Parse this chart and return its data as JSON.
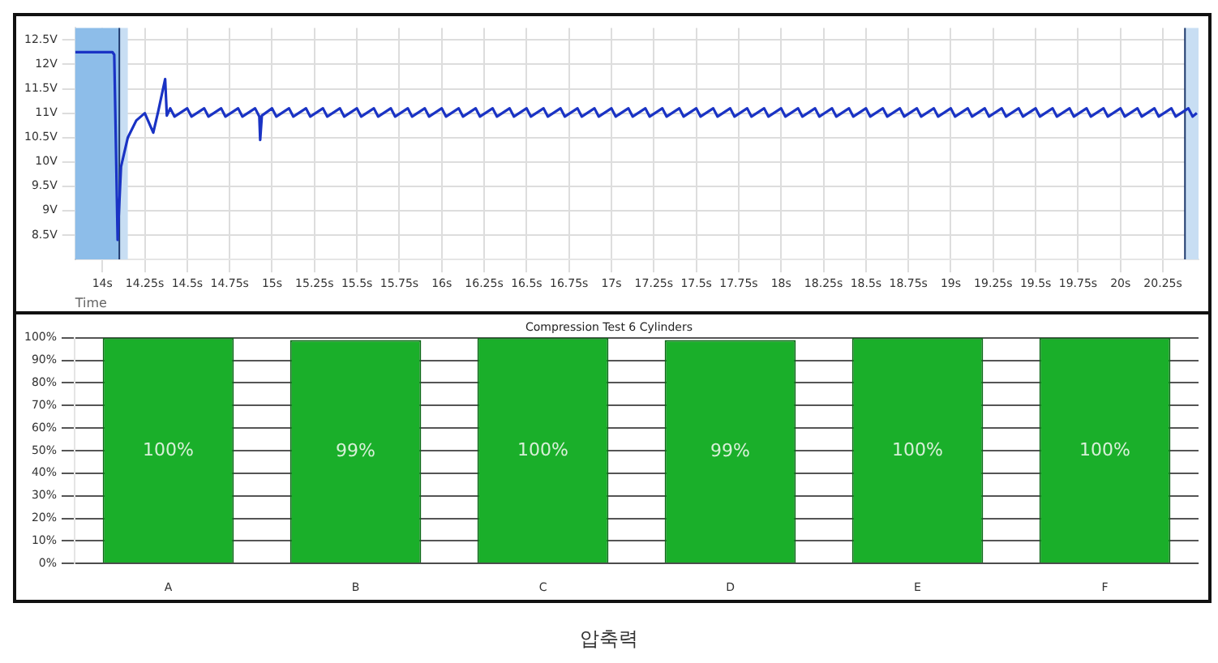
{
  "chart_data": [
    {
      "type": "line",
      "xlabel": "Time",
      "xlim": [
        13.84,
        20.46
      ],
      "xticks": [
        {
          "value": 14,
          "label": "14s"
        },
        {
          "value": 14.25,
          "label": "14.25s"
        },
        {
          "value": 14.5,
          "label": "14.5s"
        },
        {
          "value": 14.75,
          "label": "14.75s"
        },
        {
          "value": 15,
          "label": "15s"
        },
        {
          "value": 15.25,
          "label": "15.25s"
        },
        {
          "value": 15.5,
          "label": "15.5s"
        },
        {
          "value": 15.75,
          "label": "15.75s"
        },
        {
          "value": 16,
          "label": "16s"
        },
        {
          "value": 16.25,
          "label": "16.25s"
        },
        {
          "value": 16.5,
          "label": "16.5s"
        },
        {
          "value": 16.75,
          "label": "16.75s"
        },
        {
          "value": 17,
          "label": "17s"
        },
        {
          "value": 17.25,
          "label": "17.25s"
        },
        {
          "value": 17.5,
          "label": "17.5s"
        },
        {
          "value": 17.75,
          "label": "17.75s"
        },
        {
          "value": 18,
          "label": "18s"
        },
        {
          "value": 18.25,
          "label": "18.25s"
        },
        {
          "value": 18.5,
          "label": "18.5s"
        },
        {
          "value": 18.75,
          "label": "18.75s"
        },
        {
          "value": 19,
          "label": "19s"
        },
        {
          "value": 19.25,
          "label": "19.25s"
        },
        {
          "value": 19.5,
          "label": "19.5s"
        },
        {
          "value": 19.75,
          "label": "19.75s"
        },
        {
          "value": 20,
          "label": "20s"
        },
        {
          "value": 20.25,
          "label": "20.25s"
        }
      ],
      "ylim": [
        8,
        12.75
      ],
      "yticks": [
        {
          "value": 8.5,
          "label": "8.5V"
        },
        {
          "value": 9,
          "label": "9V"
        },
        {
          "value": 9.5,
          "label": "9.5V"
        },
        {
          "value": 10,
          "label": "10V"
        },
        {
          "value": 10.5,
          "label": "10.5V"
        },
        {
          "value": 11,
          "label": "11V"
        },
        {
          "value": 11.5,
          "label": "11.5V"
        },
        {
          "value": 12,
          "label": "12V"
        },
        {
          "value": 12.5,
          "label": "12.5V"
        }
      ],
      "grid": true,
      "legend": false,
      "marker": "none",
      "line_style": "solid",
      "bands": [
        {
          "axis": "x",
          "from": 13.84,
          "to": 14.1,
          "color": "#8dbde9"
        },
        {
          "axis": "x",
          "from": 14.1,
          "to": 14.15,
          "color": "#c8def3"
        },
        {
          "axis": "x",
          "from": 20.38,
          "to": 20.46,
          "color": "#c8def3"
        }
      ],
      "ref_lines": [
        {
          "axis": "x",
          "value": 14.1,
          "color": "#1f3a6e"
        },
        {
          "axis": "x",
          "value": 20.38,
          "color": "#1f3a6e"
        }
      ],
      "series": [
        {
          "color": "#1a33c4",
          "x": [
            13.84,
            14.06,
            14.07,
            14.09,
            14.11,
            14.15,
            14.2,
            14.25,
            14.3,
            14.33,
            14.37,
            14.38,
            14.4,
            14.425,
            14.5,
            14.525,
            14.6,
            14.625,
            14.7,
            14.725,
            14.8,
            14.825,
            14.9,
            14.925,
            14.93,
            14.94,
            15.0,
            15.025,
            15.1,
            15.125,
            15.2,
            15.225,
            15.3,
            15.325,
            15.4,
            15.425,
            15.5,
            15.525,
            15.6,
            15.625,
            15.7,
            15.725,
            15.8,
            15.825,
            15.9,
            15.925,
            16.0,
            16.025,
            16.1,
            16.125,
            16.2,
            16.225,
            16.3,
            16.325,
            16.4,
            16.425,
            16.5,
            16.525,
            16.6,
            16.625,
            16.7,
            16.725,
            16.8,
            16.825,
            16.9,
            16.925,
            17.0,
            17.025,
            17.1,
            17.125,
            17.2,
            17.225,
            17.3,
            17.325,
            17.4,
            17.425,
            17.5,
            17.525,
            17.6,
            17.625,
            17.7,
            17.725,
            17.8,
            17.825,
            17.9,
            17.925,
            18.0,
            18.025,
            18.1,
            18.125,
            18.2,
            18.225,
            18.3,
            18.325,
            18.4,
            18.425,
            18.5,
            18.525,
            18.6,
            18.625,
            18.7,
            18.725,
            18.8,
            18.825,
            18.9,
            18.925,
            19.0,
            19.025,
            19.1,
            19.125,
            19.2,
            19.225,
            19.3,
            19.325,
            19.4,
            19.425,
            19.5,
            19.525,
            19.6,
            19.625,
            19.7,
            19.725,
            19.8,
            19.825,
            19.9,
            19.925,
            20.0,
            20.025,
            20.1,
            20.125,
            20.2,
            20.225,
            20.3,
            20.325,
            20.4,
            20.425,
            20.45
          ],
          "values": [
            12.25,
            12.25,
            12.2,
            8.4,
            9.9,
            10.5,
            10.85,
            11.0,
            10.6,
            11.05,
            11.7,
            10.95,
            11.1,
            10.93,
            11.1,
            10.93,
            11.1,
            10.93,
            11.1,
            10.93,
            11.1,
            10.93,
            11.1,
            10.93,
            10.45,
            10.95,
            11.1,
            10.93,
            11.1,
            10.93,
            11.1,
            10.93,
            11.1,
            10.93,
            11.1,
            10.93,
            11.1,
            10.93,
            11.1,
            10.93,
            11.1,
            10.93,
            11.1,
            10.93,
            11.1,
            10.93,
            11.1,
            10.93,
            11.1,
            10.93,
            11.1,
            10.93,
            11.1,
            10.93,
            11.1,
            10.93,
            11.1,
            10.93,
            11.1,
            10.93,
            11.1,
            10.93,
            11.1,
            10.93,
            11.1,
            10.93,
            11.1,
            10.93,
            11.1,
            10.93,
            11.1,
            10.93,
            11.1,
            10.93,
            11.1,
            10.93,
            11.1,
            10.93,
            11.1,
            10.93,
            11.1,
            10.93,
            11.1,
            10.93,
            11.1,
            10.93,
            11.1,
            10.93,
            11.1,
            10.93,
            11.1,
            10.93,
            11.1,
            10.93,
            11.1,
            10.93,
            11.1,
            10.93,
            11.1,
            10.93,
            11.1,
            10.93,
            11.1,
            10.93,
            11.1,
            10.93,
            11.1,
            10.93,
            11.1,
            10.93,
            11.1,
            10.93,
            11.1,
            10.93,
            11.1,
            10.93,
            11.1,
            10.93,
            11.1,
            10.93,
            11.1,
            10.93,
            11.1,
            10.93,
            11.1,
            10.93,
            11.1,
            10.93,
            11.1,
            10.93,
            11.1,
            10.93,
            11.1,
            10.93,
            11.1,
            10.93,
            11.0
          ]
        }
      ]
    },
    {
      "type": "bar",
      "title": "Compression Test 6 Cylinders",
      "categories": [
        "A",
        "B",
        "C",
        "D",
        "E",
        "F"
      ],
      "values": [
        100,
        99,
        100,
        99,
        100,
        100
      ],
      "value_labels": [
        "100%",
        "99%",
        "100%",
        "99%",
        "100%",
        "100%"
      ],
      "color": "#1aaf2a",
      "ylim": [
        0,
        100
      ],
      "yticks": [
        {
          "value": 0,
          "label": "0%"
        },
        {
          "value": 10,
          "label": "10%"
        },
        {
          "value": 20,
          "label": "20%"
        },
        {
          "value": 30,
          "label": "30%"
        },
        {
          "value": 40,
          "label": "40%"
        },
        {
          "value": 50,
          "label": "50%"
        },
        {
          "value": 60,
          "label": "60%"
        },
        {
          "value": 70,
          "label": "70%"
        },
        {
          "value": 80,
          "label": "80%"
        },
        {
          "value": 90,
          "label": "90%"
        },
        {
          "value": 100,
          "label": "100%"
        }
      ],
      "grid": "y",
      "legend": false,
      "annotations": [
        "압축력"
      ]
    }
  ]
}
